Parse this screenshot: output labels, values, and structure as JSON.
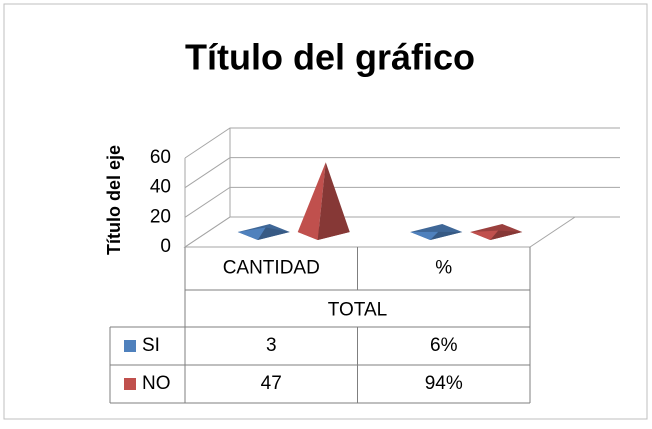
{
  "chart_data": {
    "type": "pyramid3d",
    "title": "Título del gráfico",
    "y_label": "Título del eje",
    "categories": [
      "CANTIDAD",
      "%"
    ],
    "group_label": "TOTAL",
    "series": [
      {
        "name": "SI",
        "color": "#4f81bd",
        "values": [
          3,
          0.06
        ],
        "value_labels": [
          "3",
          "6%"
        ]
      },
      {
        "name": "NO",
        "color": "#c0504d",
        "values": [
          47,
          0.94
        ],
        "value_labels": [
          "47",
          "94%"
        ]
      }
    ],
    "ylim": [
      0,
      60
    ],
    "yticks": [
      0,
      20,
      40,
      60
    ],
    "grid": true,
    "data_table": true
  }
}
